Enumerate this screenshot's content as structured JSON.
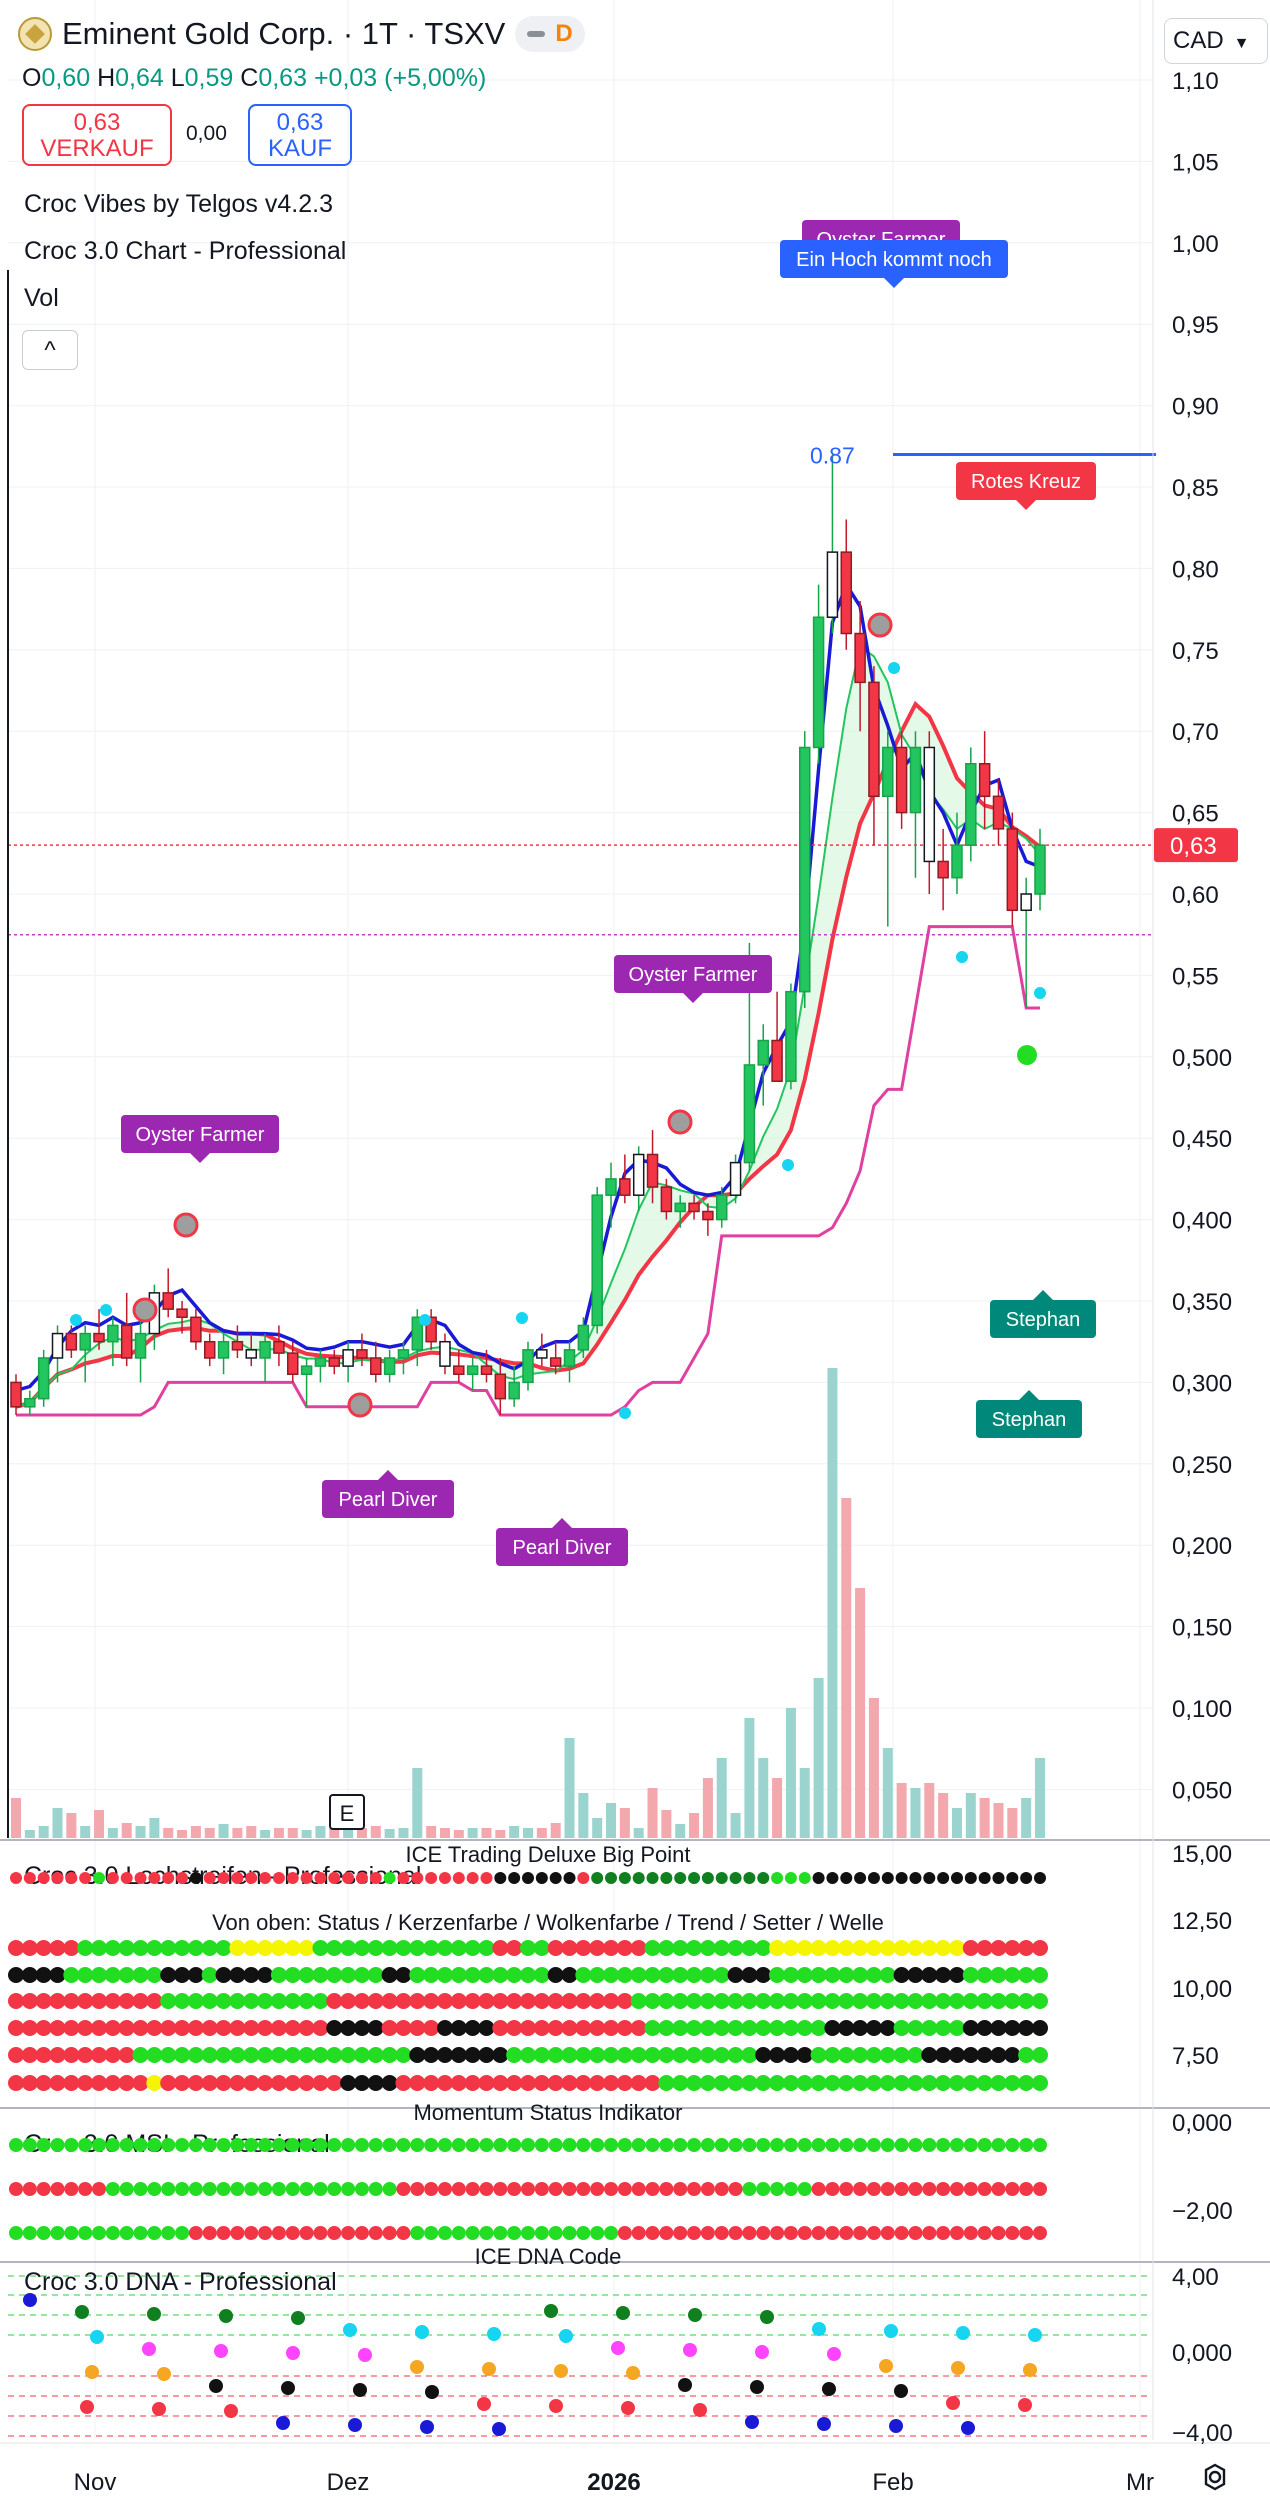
{
  "header": {
    "symbol": "Eminent Gold Corp. · 1T · TSXV",
    "badge": "D",
    "ohlc": {
      "o": "0,60",
      "h": "0,64",
      "l": "0,59",
      "c": "0,63",
      "change": "+0,03 (+5,00%)"
    },
    "sell_price": "0,63",
    "sell_label": "VERKAUF",
    "spread": "0,00",
    "buy_price": "0,63",
    "buy_label": "KAUF",
    "indicators": [
      "Croc Vibes by Telgos v4.2.3",
      "Croc 3.0 Chart - Professional",
      "Vol"
    ],
    "currency": "CAD"
  },
  "chart_data": {
    "type": "candlestick",
    "price_axis_labels": [
      "1,10",
      "1,05",
      "1,00",
      "0,95",
      "0,90",
      "0,85",
      "0,80",
      "0,75",
      "0,70",
      "0,65",
      "0,60",
      "0,55",
      "0,500",
      "0,450",
      "0,400",
      "0,350",
      "0,300",
      "0,250",
      "0,200",
      "0,150",
      "0,100",
      "0,050"
    ],
    "ylim": [
      0.02,
      1.12
    ],
    "last_price_label": "0,63",
    "last_price": 0.63,
    "ref_line": 0.575,
    "high_marker": {
      "label": "0.87",
      "value": 0.87
    },
    "x_labels": [
      "Nov",
      "Dez",
      "2026",
      "Feb",
      "Mr"
    ],
    "candles": [
      [
        0.3,
        0.305,
        0.28,
        0.285
      ],
      [
        0.285,
        0.295,
        0.28,
        0.29
      ],
      [
        0.29,
        0.32,
        0.285,
        0.315
      ],
      [
        0.315,
        0.335,
        0.3,
        0.33
      ],
      [
        0.33,
        0.335,
        0.315,
        0.32
      ],
      [
        0.32,
        0.335,
        0.3,
        0.33
      ],
      [
        0.33,
        0.345,
        0.32,
        0.325
      ],
      [
        0.325,
        0.34,
        0.31,
        0.335
      ],
      [
        0.335,
        0.355,
        0.31,
        0.315
      ],
      [
        0.315,
        0.34,
        0.3,
        0.33
      ],
      [
        0.33,
        0.36,
        0.32,
        0.355
      ],
      [
        0.355,
        0.37,
        0.34,
        0.345
      ],
      [
        0.345,
        0.35,
        0.33,
        0.34
      ],
      [
        0.34,
        0.345,
        0.32,
        0.325
      ],
      [
        0.325,
        0.33,
        0.31,
        0.315
      ],
      [
        0.315,
        0.33,
        0.305,
        0.325
      ],
      [
        0.325,
        0.335,
        0.315,
        0.32
      ],
      [
        0.32,
        0.33,
        0.31,
        0.315
      ],
      [
        0.315,
        0.33,
        0.3,
        0.325
      ],
      [
        0.325,
        0.335,
        0.31,
        0.318
      ],
      [
        0.318,
        0.325,
        0.3,
        0.305
      ],
      [
        0.305,
        0.315,
        0.285,
        0.31
      ],
      [
        0.31,
        0.32,
        0.3,
        0.315
      ],
      [
        0.315,
        0.32,
        0.305,
        0.31
      ],
      [
        0.31,
        0.325,
        0.3,
        0.32
      ],
      [
        0.32,
        0.33,
        0.31,
        0.315
      ],
      [
        0.315,
        0.325,
        0.3,
        0.305
      ],
      [
        0.305,
        0.32,
        0.3,
        0.315
      ],
      [
        0.315,
        0.325,
        0.305,
        0.32
      ],
      [
        0.32,
        0.345,
        0.31,
        0.34
      ],
      [
        0.34,
        0.345,
        0.32,
        0.325
      ],
      [
        0.325,
        0.33,
        0.305,
        0.31
      ],
      [
        0.31,
        0.32,
        0.3,
        0.305
      ],
      [
        0.305,
        0.315,
        0.295,
        0.31
      ],
      [
        0.31,
        0.32,
        0.3,
        0.305
      ],
      [
        0.305,
        0.315,
        0.28,
        0.29
      ],
      [
        0.29,
        0.31,
        0.285,
        0.3
      ],
      [
        0.3,
        0.325,
        0.295,
        0.32
      ],
      [
        0.32,
        0.33,
        0.31,
        0.315
      ],
      [
        0.315,
        0.325,
        0.305,
        0.31
      ],
      [
        0.31,
        0.325,
        0.3,
        0.32
      ],
      [
        0.32,
        0.34,
        0.315,
        0.335
      ],
      [
        0.335,
        0.42,
        0.33,
        0.415
      ],
      [
        0.415,
        0.435,
        0.395,
        0.425
      ],
      [
        0.425,
        0.44,
        0.41,
        0.415
      ],
      [
        0.415,
        0.445,
        0.405,
        0.44
      ],
      [
        0.44,
        0.455,
        0.41,
        0.42
      ],
      [
        0.42,
        0.425,
        0.4,
        0.405
      ],
      [
        0.405,
        0.415,
        0.395,
        0.41
      ],
      [
        0.41,
        0.415,
        0.4,
        0.405
      ],
      [
        0.405,
        0.41,
        0.39,
        0.4
      ],
      [
        0.4,
        0.42,
        0.395,
        0.415
      ],
      [
        0.415,
        0.44,
        0.41,
        0.435
      ],
      [
        0.435,
        0.57,
        0.43,
        0.495
      ],
      [
        0.495,
        0.52,
        0.47,
        0.51
      ],
      [
        0.51,
        0.54,
        0.49,
        0.485
      ],
      [
        0.485,
        0.545,
        0.48,
        0.54
      ],
      [
        0.54,
        0.7,
        0.53,
        0.69
      ],
      [
        0.69,
        0.79,
        0.68,
        0.77
      ],
      [
        0.77,
        0.87,
        0.76,
        0.81
      ],
      [
        0.81,
        0.83,
        0.75,
        0.76
      ],
      [
        0.76,
        0.78,
        0.7,
        0.73
      ],
      [
        0.73,
        0.74,
        0.63,
        0.66
      ],
      [
        0.66,
        0.7,
        0.58,
        0.69
      ],
      [
        0.69,
        0.7,
        0.64,
        0.65
      ],
      [
        0.65,
        0.7,
        0.61,
        0.69
      ],
      [
        0.69,
        0.7,
        0.6,
        0.62
      ],
      [
        0.62,
        0.64,
        0.59,
        0.61
      ],
      [
        0.61,
        0.65,
        0.6,
        0.63
      ],
      [
        0.63,
        0.69,
        0.62,
        0.68
      ],
      [
        0.68,
        0.7,
        0.64,
        0.66
      ],
      [
        0.66,
        0.67,
        0.63,
        0.64
      ],
      [
        0.64,
        0.65,
        0.58,
        0.59
      ],
      [
        0.59,
        0.61,
        0.53,
        0.6
      ],
      [
        0.6,
        0.64,
        0.59,
        0.63
      ]
    ],
    "volume_axis_labels": [
      "15,00",
      "12,50",
      "10,00",
      "7,50"
    ],
    "msi_axis_labels": [
      "0,000",
      "−2,00"
    ],
    "dna_axis_labels": [
      "4,00",
      "0,000",
      "−4,00"
    ],
    "labels": {
      "oyster_top": "Oyster Farmer",
      "hoch": "Ein Hoch kommt noch",
      "rotes_kreuz": "Rotes Kreuz",
      "oyster_mid": "Oyster Farmer",
      "oyster_left": "Oyster Farmer",
      "pearl1": "Pearl Diver",
      "pearl2": "Pearl Diver",
      "stephan1": "Stephan",
      "stephan2": "Stephan",
      "earnings": "E"
    },
    "panes": {
      "lochstreifen": "Croc 3.0 Lochstreifen - Professional",
      "ice_big_point": "ICE Trading Deluxe Big Point",
      "von_oben": "Von oben: Status / Kerzenfarbe / Wolkenfarbe / Trend / Setter / Welle",
      "msi": "Croc 3.0 MSI - Professional",
      "momentum": "Momentum Status Indikator",
      "dna": "Croc 3.0 DNA - Professional",
      "ice_dna": "ICE DNA Code"
    },
    "colors": {
      "up": "#22c55e",
      "down": "#f23645",
      "blue": "#1a1ad6",
      "pink": "#e040a0",
      "cyan": "#17d4f0",
      "purple": "#9c27b0",
      "teal": "#00897b",
      "hoch_blue": "#2962ff"
    }
  },
  "icons": {
    "settings": "settings-gear-icon",
    "collapse": "chevron-up-icon",
    "logo": "gold-coin-logo-icon"
  }
}
